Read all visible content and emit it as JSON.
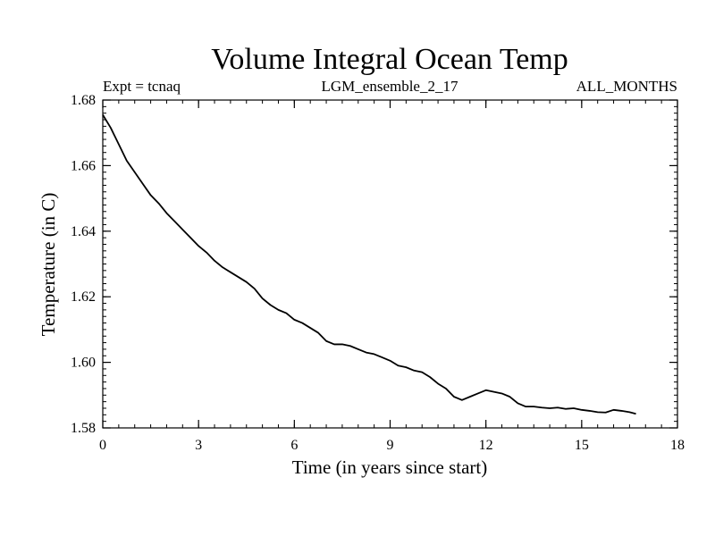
{
  "chart_data": {
    "type": "line",
    "title": "Volume Integral Ocean Temp",
    "subtitle_left": "Expt = tcnaq",
    "subtitle_center": "LGM_ensemble_2_17",
    "subtitle_right": "ALL_MONTHS",
    "xlabel": "Time (in years since start)",
    "ylabel": "Temperature (in C)",
    "xlim": [
      0,
      18
    ],
    "ylim": [
      1.58,
      1.68
    ],
    "x_ticks": [
      0,
      3,
      6,
      9,
      12,
      15,
      18
    ],
    "x_tick_labels": [
      "0",
      "3",
      "6",
      "9",
      "12",
      "15",
      "18"
    ],
    "y_ticks": [
      1.58,
      1.6,
      1.62,
      1.64,
      1.66,
      1.68
    ],
    "y_tick_labels": [
      "1.58",
      "1.60",
      "1.62",
      "1.64",
      "1.66",
      "1.68"
    ],
    "grid": false,
    "line_color": "#000000",
    "series": [
      {
        "name": "Volume integral ocean temperature",
        "x": [
          0.0,
          0.25,
          0.5,
          0.75,
          1.0,
          1.25,
          1.5,
          1.75,
          2.0,
          2.25,
          2.5,
          2.75,
          3.0,
          3.25,
          3.5,
          3.75,
          4.0,
          4.25,
          4.5,
          4.75,
          5.0,
          5.25,
          5.5,
          5.75,
          6.0,
          6.25,
          6.5,
          6.75,
          7.0,
          7.25,
          7.5,
          7.75,
          8.0,
          8.25,
          8.5,
          8.75,
          9.0,
          9.25,
          9.5,
          9.75,
          10.0,
          10.25,
          10.5,
          10.75,
          11.0,
          11.25,
          11.5,
          11.75,
          12.0,
          12.25,
          12.5,
          12.75,
          13.0,
          13.25,
          13.5,
          13.75,
          14.0,
          14.25,
          14.5,
          14.75,
          15.0,
          15.25,
          15.5,
          15.75,
          16.0,
          16.25,
          16.5,
          16.7
        ],
        "y": [
          1.6755,
          1.6715,
          1.6665,
          1.6615,
          1.658,
          1.6545,
          1.651,
          1.6485,
          1.6455,
          1.643,
          1.6405,
          1.638,
          1.6355,
          1.6335,
          1.631,
          1.629,
          1.6275,
          1.626,
          1.6245,
          1.6225,
          1.6195,
          1.6175,
          1.616,
          1.615,
          1.613,
          1.612,
          1.6105,
          1.609,
          1.6065,
          1.6055,
          1.6055,
          1.605,
          1.604,
          1.603,
          1.6025,
          1.6015,
          1.6005,
          1.599,
          1.5985,
          1.5975,
          1.597,
          1.5955,
          1.5935,
          1.592,
          1.5895,
          1.5885,
          1.5895,
          1.5905,
          1.5915,
          1.591,
          1.5905,
          1.5895,
          1.5875,
          1.5865,
          1.5865,
          1.5862,
          1.586,
          1.5862,
          1.5858,
          1.586,
          1.5855,
          1.5852,
          1.5848,
          1.5847,
          1.5855,
          1.5852,
          1.5848,
          1.5843
        ]
      }
    ]
  }
}
